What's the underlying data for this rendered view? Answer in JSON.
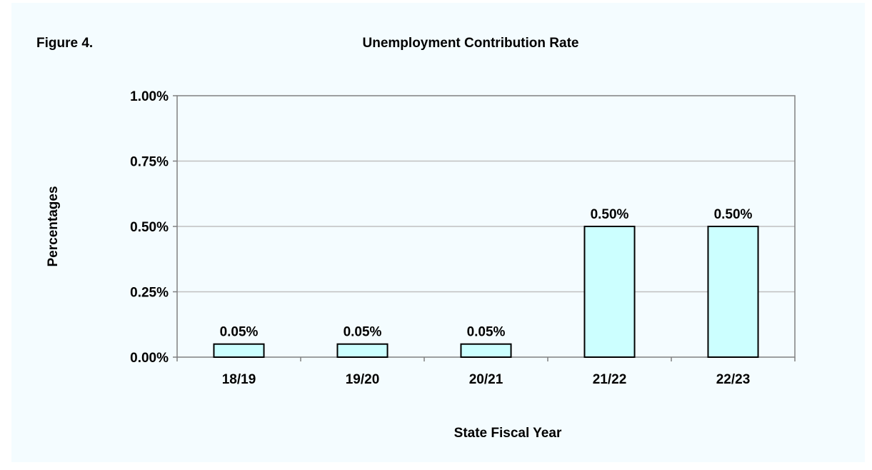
{
  "figure_label": "Figure 4.",
  "chart_data": {
    "type": "bar",
    "title": "Unemployment Contribution Rate",
    "xlabel": "State Fiscal Year",
    "ylabel": "Percentages",
    "categories": [
      "18/19",
      "19/20",
      "20/21",
      "21/22",
      "22/23"
    ],
    "values": [
      0.05,
      0.05,
      0.05,
      0.5,
      0.5
    ],
    "value_labels": [
      "0.05%",
      "0.05%",
      "0.05%",
      "0.50%",
      "0.50%"
    ],
    "ylim": [
      0,
      1.0
    ],
    "yticks": [
      0,
      0.25,
      0.5,
      0.75,
      1.0
    ],
    "ytick_labels": [
      "0.00%",
      "0.25%",
      "0.50%",
      "0.75%",
      "1.00%"
    ],
    "grid": true,
    "legend": "none",
    "colors": {
      "bar_fill": "#ccffff",
      "bar_stroke": "#000000",
      "gridline": "#c0c0c0",
      "background": "#f4fcff"
    }
  }
}
